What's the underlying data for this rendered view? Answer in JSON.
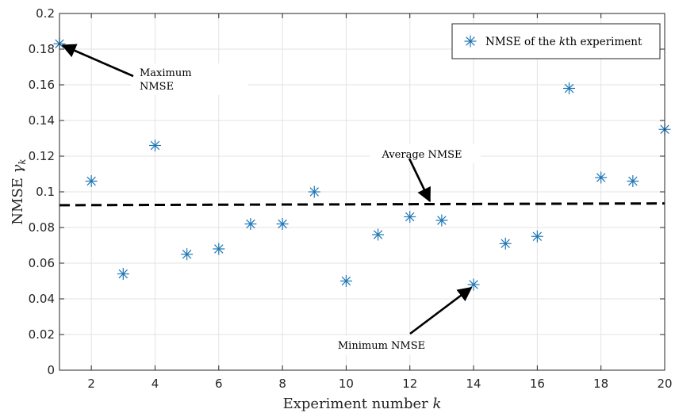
{
  "chart_data": {
    "type": "scatter",
    "xlabel_text": "Experiment number ",
    "xlabel_var": "k",
    "ylabel_text": "NMSE ",
    "ylabel_var": "γ",
    "ylabel_sub": "k",
    "xlim": [
      1,
      20
    ],
    "ylim": [
      0,
      0.2
    ],
    "xticks": [
      2,
      4,
      6,
      8,
      10,
      12,
      14,
      16,
      18,
      20
    ],
    "yticks": [
      0,
      0.02,
      0.04,
      0.06,
      0.08,
      0.1,
      0.12,
      0.14,
      0.16,
      0.18,
      0.2
    ],
    "grid": true,
    "legend_position": "top-right",
    "series": [
      {
        "legend_text_pre": "NMSE of the ",
        "legend_var": "k",
        "legend_text_post": "th experiment",
        "color": "#1f77b4",
        "marker": "asterisk",
        "x": [
          1,
          2,
          3,
          4,
          5,
          6,
          7,
          8,
          9,
          10,
          11,
          12,
          13,
          14,
          15,
          16,
          17,
          18,
          19,
          20
        ],
        "y": [
          0.183,
          0.106,
          0.054,
          0.126,
          0.065,
          0.068,
          0.082,
          0.082,
          0.1,
          0.05,
          0.076,
          0.086,
          0.084,
          0.048,
          0.071,
          0.075,
          0.158,
          0.108,
          0.106,
          0.135
        ]
      }
    ],
    "average_line": {
      "y_start": 0.0925,
      "y_end": 0.0935,
      "style": "dashed",
      "color": "#000000"
    },
    "annotations": [
      {
        "lines": [
          "Maximum",
          "NMSE"
        ],
        "target": [
          1,
          0.183
        ]
      },
      {
        "lines": [
          "Average NMSE"
        ],
        "target": [
          12.7,
          0.0935
        ]
      },
      {
        "lines": [
          "Minimum NMSE"
        ],
        "target": [
          14,
          0.048
        ]
      }
    ]
  }
}
